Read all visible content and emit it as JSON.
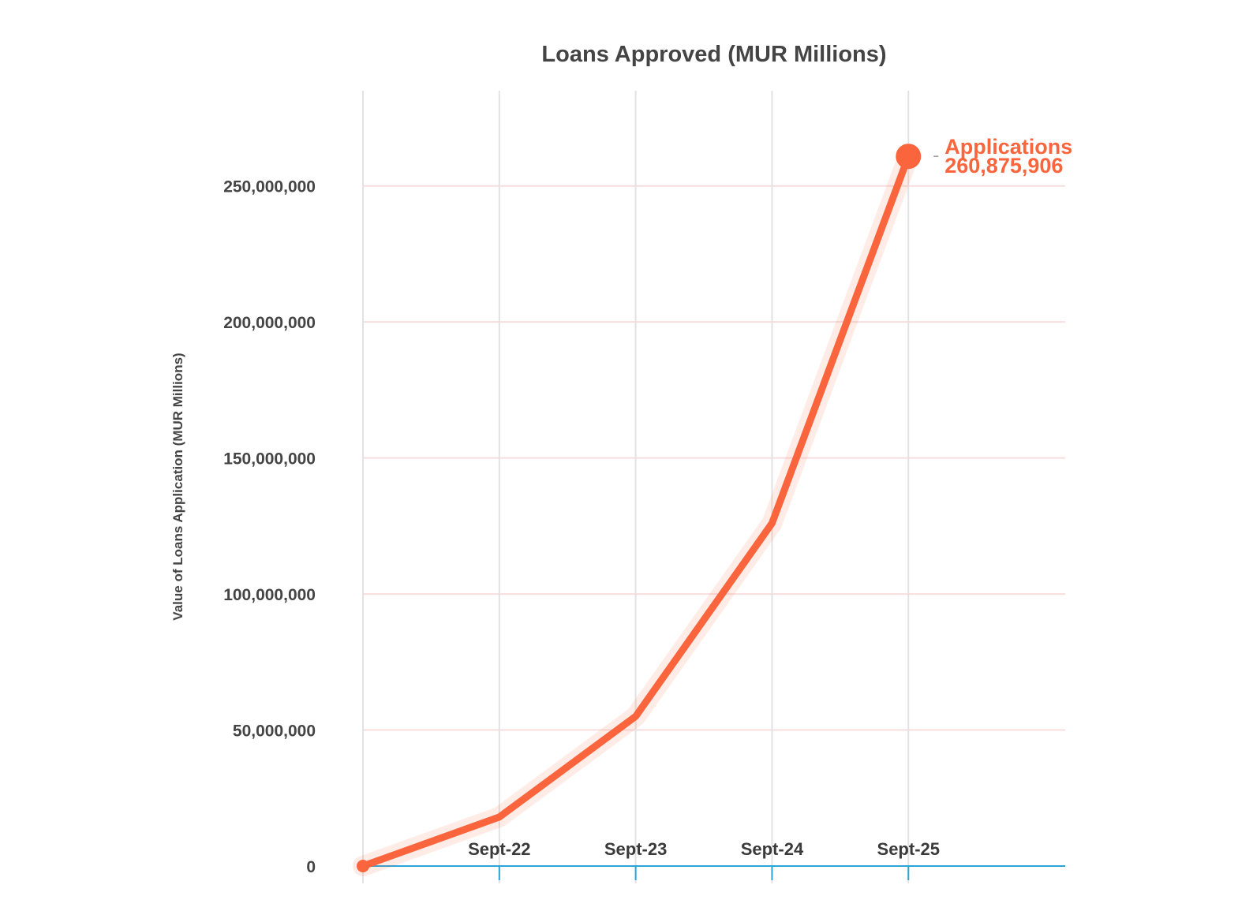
{
  "chart_data": {
    "type": "line",
    "title": "Loans Approved (MUR Millions)",
    "xlabel": "",
    "ylabel": "Value of Loans Application (MUR Millions)",
    "x_positions": [
      0,
      1,
      2,
      3,
      4
    ],
    "x_tick_positions": [
      1,
      2,
      3,
      4
    ],
    "x_tick_labels": [
      "Sept-22",
      "Sept-23",
      "Sept-24",
      "Sept-25"
    ],
    "xlim": [
      0,
      5.15
    ],
    "ylim": [
      0,
      285000000
    ],
    "y_ticks": [
      0,
      50000000,
      100000000,
      150000000,
      200000000,
      250000000
    ],
    "y_tick_labels": [
      "0",
      "50,000,000",
      "100,000,000",
      "150,000,000",
      "200,000,000",
      "250,000,000"
    ],
    "series": [
      {
        "name": "Applications",
        "values": [
          0,
          18000000,
          55000000,
          126000000,
          260875906
        ],
        "color": "#fb653d"
      }
    ],
    "annotation": {
      "series_label": "Applications",
      "value_label": "260,875,906"
    },
    "grid": true,
    "colors": {
      "line": "#fb653d",
      "hgrid": "#f7dede",
      "vgrid": "#e2e2e2",
      "xaxis": "#29a6d6",
      "text": "#444444"
    }
  }
}
